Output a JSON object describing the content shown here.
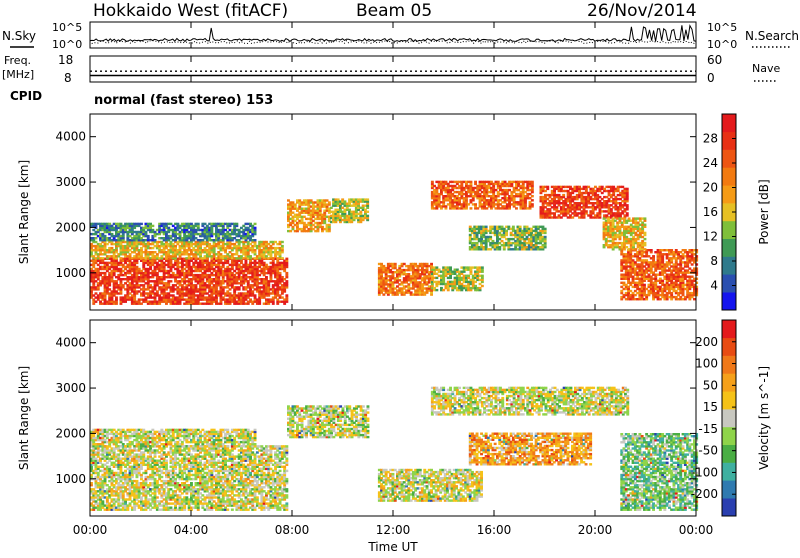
{
  "header": {
    "station": "Hokkaido West (fitACF)",
    "beam": "Beam 05",
    "date": "26/Nov/2014"
  },
  "noise_panel": {
    "left_label": "N.Sky",
    "right_label": "N.Search",
    "top_tick": "10^5",
    "bottom_tick": "10^0"
  },
  "freq_panel": {
    "label_freq": "Freq.",
    "label_unit": "[MHz]",
    "left_ticks": [
      "18",
      "8"
    ],
    "right_label": "Nave",
    "right_ticks": [
      "60",
      "0"
    ],
    "freq_value_mhz": 10.5,
    "nave_value": 25
  },
  "cpid": {
    "label": "CPID",
    "text": "normal (fast stereo) 153"
  },
  "chart_data": [
    {
      "type": "heatmap",
      "name": "power",
      "ylabel": "Slant Range [km]",
      "xlabel": "",
      "xlim": [
        "00:00",
        "24:00"
      ],
      "ylim": [
        180,
        4500
      ],
      "yticks": [
        "1000",
        "2000",
        "3000",
        "4000"
      ],
      "colorbar": {
        "label": "Power [dB]",
        "ticks": [
          "4",
          "8",
          "12",
          "16",
          "20",
          "24",
          "28"
        ],
        "colors": [
          "#1414ee",
          "#2a4fb0",
          "#2f7a8c",
          "#3f9a55",
          "#7fbf3a",
          "#e6c024",
          "#f59b16",
          "#f27a10",
          "#ee5512",
          "#e83014",
          "#e41a1c"
        ]
      },
      "regions": [
        {
          "t0": 0.0,
          "t1": 7.8,
          "r0": 300,
          "r1": 1300,
          "level": 0.85
        },
        {
          "t0": 0.0,
          "t1": 7.6,
          "r0": 1300,
          "r1": 1700,
          "level": 0.55
        },
        {
          "t0": 0.0,
          "t1": 6.5,
          "r0": 1700,
          "r1": 2100,
          "level": 0.25
        },
        {
          "t0": 7.8,
          "t1": 9.5,
          "r0": 1900,
          "r1": 2600,
          "level": 0.6
        },
        {
          "t0": 9.5,
          "t1": 11.0,
          "r0": 2100,
          "r1": 2600,
          "level": 0.45
        },
        {
          "t0": 11.4,
          "t1": 13.5,
          "r0": 500,
          "r1": 1200,
          "level": 0.7
        },
        {
          "t0": 13.5,
          "t1": 15.5,
          "r0": 600,
          "r1": 1100,
          "level": 0.45
        },
        {
          "t0": 13.5,
          "t1": 17.5,
          "r0": 2400,
          "r1": 3000,
          "level": 0.75
        },
        {
          "t0": 15.0,
          "t1": 18.0,
          "r0": 1500,
          "r1": 2000,
          "level": 0.4
        },
        {
          "t0": 17.8,
          "t1": 21.3,
          "r0": 2200,
          "r1": 2900,
          "level": 0.85
        },
        {
          "t0": 21.0,
          "t1": 24.0,
          "r0": 400,
          "r1": 1500,
          "level": 0.75
        },
        {
          "t0": 20.3,
          "t1": 22.0,
          "r0": 1500,
          "r1": 2200,
          "level": 0.55
        }
      ]
    },
    {
      "type": "heatmap",
      "name": "velocity",
      "ylabel": "Slant Range [km]",
      "xlabel": "Time UT",
      "xticks": [
        "00:00",
        "04:00",
        "08:00",
        "12:00",
        "16:00",
        "20:00",
        "00:00"
      ],
      "ylim": [
        180,
        4500
      ],
      "yticks": [
        "1000",
        "2000",
        "3000",
        "4000"
      ],
      "colorbar": {
        "label": "Velocity [m s^-1]",
        "ticks": [
          "200",
          "100",
          "50",
          "15",
          "-15",
          "-50",
          "-100",
          "-200"
        ],
        "colors": [
          "#2a3fb0",
          "#2f7ab0",
          "#3fb0a0",
          "#4aae44",
          "#8fd44a",
          "#c8c8c0",
          "#f5c218",
          "#f5a01a",
          "#f07818",
          "#e84b12",
          "#e41a1c"
        ]
      },
      "regions": [
        {
          "t0": 0.0,
          "t1": 7.8,
          "r0": 300,
          "r1": 1700,
          "level": 0.5
        },
        {
          "t0": 0.0,
          "t1": 6.5,
          "r0": 1700,
          "r1": 2100,
          "level": 0.5
        },
        {
          "t0": 7.8,
          "t1": 11.0,
          "r0": 1900,
          "r1": 2600,
          "level": 0.48
        },
        {
          "t0": 11.4,
          "t1": 15.5,
          "r0": 500,
          "r1": 1200,
          "level": 0.5
        },
        {
          "t0": 13.5,
          "t1": 21.3,
          "r0": 2400,
          "r1": 3000,
          "level": 0.5
        },
        {
          "t0": 15.0,
          "t1": 19.8,
          "r0": 1300,
          "r1": 2000,
          "level": 0.68
        },
        {
          "t0": 21.0,
          "t1": 24.0,
          "r0": 300,
          "r1": 2000,
          "level": 0.35
        }
      ]
    }
  ]
}
